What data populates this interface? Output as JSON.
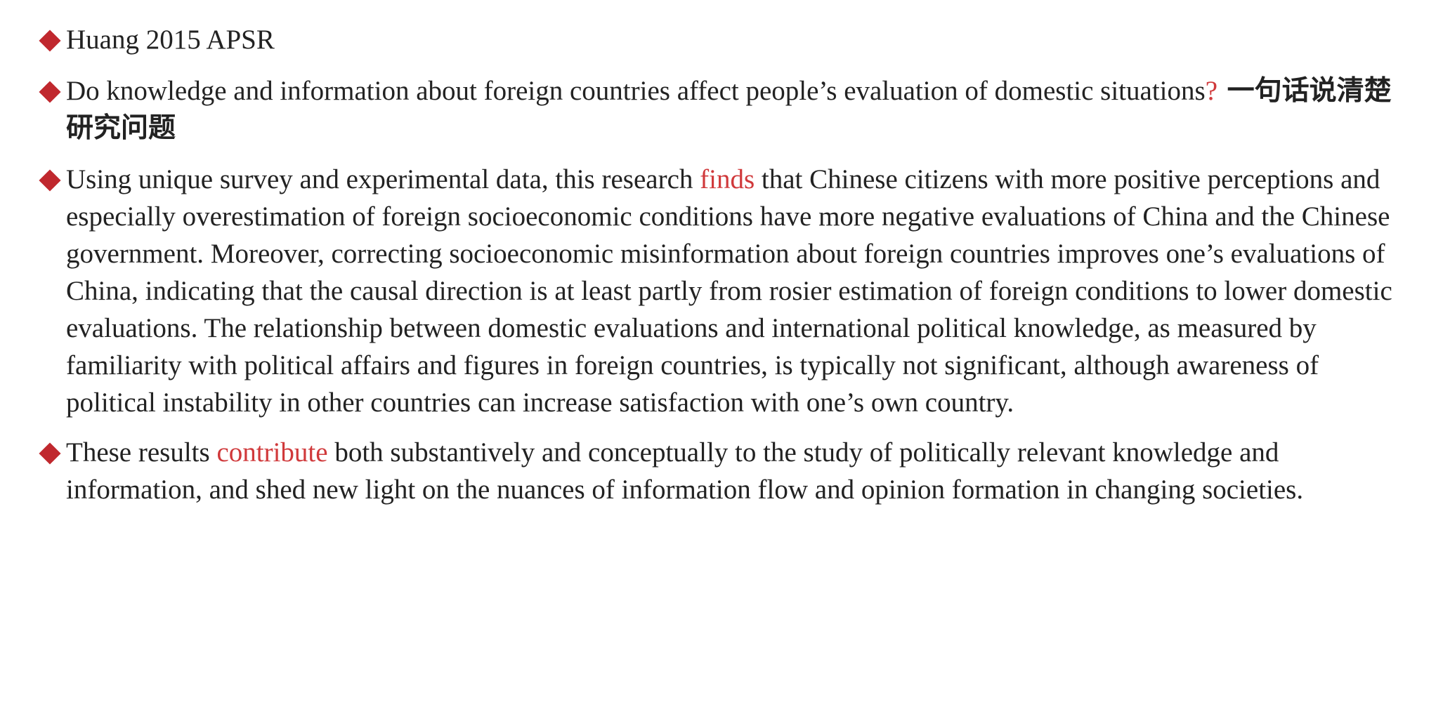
{
  "slide": {
    "accent_color": "#c0282e",
    "highlight_color": "#d0393b",
    "bullet_icon": "red-diamond-icon",
    "bullets": [
      {
        "text": "Huang 2015 APSR"
      },
      {
        "text_before": "Do knowledge and information about foreign countries affect people’s evaluation of domestic situations",
        "highlight": "?",
        "text_after_cjk": " 一句话说清楚研究问题"
      },
      {
        "text_before": "Using unique survey and experimental data, this research ",
        "highlight": "finds",
        "text_after": " that Chinese citizens with more positive perceptions and especially overestimation of foreign socioeconomic conditions have more negative evaluations of China and the Chinese government. Moreover, correcting socioeconomic misinformation about foreign countries improves one’s evaluations of China, indicating that the causal direction is at least partly from rosier estimation of foreign conditions to lower domestic evaluations. The relationship between domestic evaluations and international political knowledge, as measured by familiarity with political affairs and figures in foreign countries, is typically not significant, although awareness of political instability in other countries can increase satisfaction with one’s own country."
      },
      {
        "text_before": "These results ",
        "highlight": "contribute",
        "text_after": " both substantively and conceptually to the study of politically relevant knowledge and information, and shed new light on the nuances of information flow and opinion formation in changing societies."
      }
    ]
  }
}
